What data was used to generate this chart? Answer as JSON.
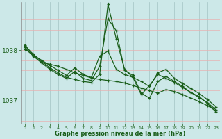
{
  "title": "Graphe pression niveau de la mer (hPa)",
  "bg_color": "#cce8e8",
  "grid_color_v": "#aacaca",
  "grid_color_h": "#e8b0b0",
  "line_color": "#1a5e1a",
  "yticks": [
    1037,
    1038
  ],
  "xticks": [
    0,
    1,
    2,
    3,
    4,
    5,
    6,
    7,
    8,
    9,
    10,
    11,
    12,
    13,
    14,
    15,
    16,
    17,
    18,
    19,
    20,
    21,
    22,
    23
  ],
  "xlim": [
    -0.5,
    23.5
  ],
  "ylim": [
    1036.55,
    1038.95
  ],
  "series": [
    [
      1038.1,
      1037.9,
      1037.75,
      1037.72,
      1037.68,
      1037.62,
      1037.55,
      1037.5,
      1037.45,
      1037.42,
      1037.4,
      1037.38,
      1037.35,
      1037.3,
      1037.25,
      1037.2,
      1037.15,
      1037.22,
      1037.18,
      1037.12,
      1037.05,
      1036.98,
      1036.9,
      1036.8
    ],
    [
      1038.05,
      1037.88,
      1037.75,
      1037.62,
      1037.52,
      1037.44,
      1037.58,
      1037.44,
      1037.4,
      1037.68,
      1038.62,
      1038.38,
      1037.6,
      1037.5,
      1037.15,
      1037.05,
      1037.38,
      1037.48,
      1037.38,
      1037.28,
      1037.16,
      1037.08,
      1036.94,
      1036.78
    ],
    [
      1038.08,
      1037.92,
      1037.78,
      1037.65,
      1037.55,
      1037.46,
      1037.42,
      1037.38,
      1037.36,
      1037.52,
      1038.9,
      1038.22,
      1037.62,
      1037.46,
      1037.12,
      1037.3,
      1037.52,
      1037.44,
      1037.36,
      1037.26,
      1037.16,
      1037.06,
      1036.96,
      1036.82
    ],
    [
      1038.02,
      1037.9,
      1037.8,
      1037.7,
      1037.6,
      1037.5,
      1037.65,
      1037.52,
      1037.46,
      1037.88,
      1037.98,
      1037.62,
      1037.52,
      1037.46,
      1037.38,
      1037.28,
      1037.55,
      1037.62,
      1037.44,
      1037.34,
      1037.24,
      1037.14,
      1037.02,
      1036.88
    ]
  ]
}
